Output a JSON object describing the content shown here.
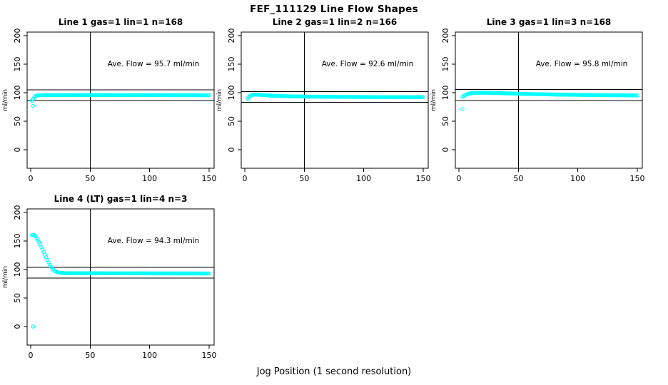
{
  "figure": {
    "title": "FEF_111129  Line Flow Shapes",
    "xlabel": "Jog Position (1 second resolution)",
    "background": "#ffffff",
    "marker_color": "#00ffff",
    "axis_color": "#000000"
  },
  "chart_data": [
    {
      "type": "scatter",
      "title": "Line 1 gas=1 lin=1 n=168",
      "annotation": "Ave. Flow =  95.7  ml/min",
      "ave_flow": 95.7,
      "n": 168,
      "ylabel": "ml/min",
      "x_ticks": [
        0,
        50,
        100,
        150
      ],
      "y_ticks": [
        0,
        50,
        100,
        150,
        200
      ],
      "xlim": [
        -3,
        154
      ],
      "ylim": [
        -32,
        206
      ],
      "ref_hlines": [
        86.1,
        105.3
      ],
      "ref_vline": 50,
      "series_profile": [
        [
          1,
          86
        ],
        [
          2,
          89
        ],
        [
          3,
          92
        ],
        [
          4,
          94
        ],
        [
          6,
          95.3
        ],
        [
          10,
          95.6
        ],
        [
          50,
          95.9
        ],
        [
          100,
          95.7
        ],
        [
          150,
          95.5
        ]
      ],
      "outliers": [
        [
          2,
          77
        ]
      ]
    },
    {
      "type": "scatter",
      "title": "Line 2 gas=1 lin=2 n=166",
      "annotation": "Ave. Flow =  92.6  ml/min",
      "ave_flow": 92.6,
      "n": 166,
      "ylabel": "ml/min",
      "x_ticks": [
        0,
        50,
        100,
        150
      ],
      "y_ticks": [
        0,
        50,
        100,
        150,
        200
      ],
      "xlim": [
        -3,
        154
      ],
      "ylim": [
        -32,
        206
      ],
      "ref_hlines": [
        83.3,
        101.9
      ],
      "ref_vline": 50,
      "series_profile": [
        [
          3,
          91.5
        ],
        [
          4,
          94
        ],
        [
          6,
          96
        ],
        [
          9,
          96.8
        ],
        [
          15,
          95.8
        ],
        [
          25,
          94.5
        ],
        [
          40,
          93.5
        ],
        [
          70,
          92.8
        ],
        [
          110,
          92.4
        ],
        [
          150,
          92.2
        ]
      ],
      "outliers": [
        [
          3,
          88
        ]
      ]
    },
    {
      "type": "scatter",
      "title": "Line 3 gas=1 lin=3 n=168",
      "annotation": "Ave. Flow =  95.8  ml/min",
      "ave_flow": 95.8,
      "n": 168,
      "ylabel": "ml/min",
      "x_ticks": [
        0,
        50,
        100,
        150
      ],
      "y_ticks": [
        0,
        50,
        100,
        150,
        200
      ],
      "xlim": [
        -3,
        154
      ],
      "ylim": [
        -32,
        206
      ],
      "ref_hlines": [
        86.2,
        105.4
      ],
      "ref_vline": 50,
      "series_profile": [
        [
          3,
          92.5
        ],
        [
          5,
          95.5
        ],
        [
          7,
          97.5
        ],
        [
          10,
          99
        ],
        [
          15,
          99.8
        ],
        [
          25,
          99.8
        ],
        [
          40,
          98.8
        ],
        [
          60,
          97.6
        ],
        [
          90,
          96.5
        ],
        [
          120,
          95.7
        ],
        [
          150,
          95.2
        ]
      ],
      "outliers": [
        [
          3,
          71
        ]
      ]
    },
    {
      "type": "scatter",
      "title": "Line 4 (LT) gas=1 lin=4 n=3",
      "annotation": "Ave. Flow =  94.3  ml/min",
      "ave_flow": 94.3,
      "n": 3,
      "ylabel": "ml/min",
      "x_ticks": [
        0,
        50,
        100,
        150
      ],
      "y_ticks": [
        0,
        50,
        100,
        150,
        200
      ],
      "xlim": [
        -3,
        154
      ],
      "ylim": [
        -32,
        206
      ],
      "ref_hlines": [
        84.9,
        103.7
      ],
      "ref_vline": 50,
      "series_profile": [
        [
          1,
          160
        ],
        [
          2,
          161
        ],
        [
          3,
          160
        ],
        [
          4,
          158
        ],
        [
          5,
          155
        ],
        [
          6,
          151.5
        ],
        [
          7,
          148
        ],
        [
          8,
          144
        ],
        [
          9,
          139.5
        ],
        [
          10,
          135
        ],
        [
          11,
          130.5
        ],
        [
          12,
          126
        ],
        [
          13,
          121.5
        ],
        [
          14,
          117
        ],
        [
          15,
          112.5
        ],
        [
          16,
          108.5
        ],
        [
          17,
          105
        ],
        [
          18,
          102
        ],
        [
          19,
          99.5
        ],
        [
          20,
          97.5
        ],
        [
          22,
          95.5
        ],
        [
          24,
          94.5
        ],
        [
          27,
          93.8
        ],
        [
          30,
          93.5
        ],
        [
          50,
          93.4
        ],
        [
          100,
          93.2
        ],
        [
          150,
          93
        ]
      ],
      "outliers": [
        [
          2,
          0
        ]
      ]
    }
  ]
}
